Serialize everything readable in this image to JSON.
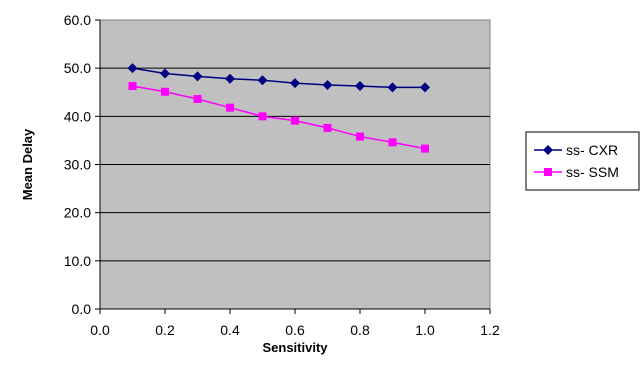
{
  "chart_data": {
    "type": "line",
    "xlabel": "Sensitivity",
    "ylabel": "Mean Delay",
    "xlim": [
      0.0,
      1.2
    ],
    "ylim": [
      0.0,
      60.0
    ],
    "xticks": [
      "0.0",
      "0.2",
      "0.4",
      "0.6",
      "0.8",
      "1.0",
      "1.2"
    ],
    "yticks": [
      "0.0",
      "10.0",
      "20.0",
      "30.0",
      "40.0",
      "50.0",
      "60.0"
    ],
    "grid": "horizontal",
    "legend_position": "right",
    "plot_background": "#c0c0c0",
    "x": [
      0.1,
      0.2,
      0.3,
      0.4,
      0.5,
      0.6,
      0.7,
      0.8,
      0.9,
      1.0
    ],
    "series": [
      {
        "name": "ss- CXR",
        "color": "#000080",
        "marker": "diamond",
        "values": [
          50.0,
          48.9,
          48.3,
          47.8,
          47.5,
          46.9,
          46.5,
          46.3,
          46.0,
          46.0
        ]
      },
      {
        "name": "ss- SSM",
        "color": "#ff00ff",
        "marker": "square",
        "values": [
          46.3,
          45.1,
          43.6,
          41.8,
          40.0,
          39.1,
          37.6,
          35.8,
          34.6,
          33.3
        ]
      }
    ]
  }
}
